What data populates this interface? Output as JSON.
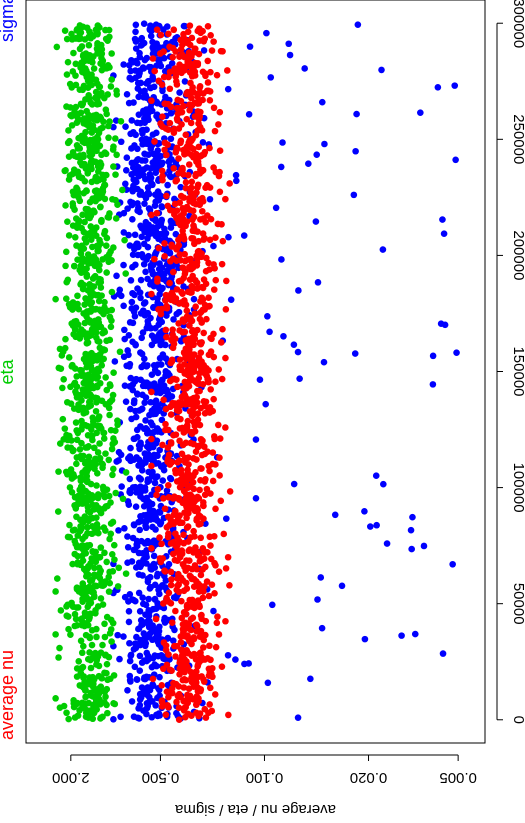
{
  "chart_data": {
    "type": "scatter",
    "orientation": "rotated-90",
    "xlabel": "",
    "ylabel": "average nu / eta / sigma",
    "x_ticks": [
      "0",
      "50000",
      "100000",
      "150000",
      "200000",
      "250000",
      "300000"
    ],
    "y_ticks": [
      "2.000",
      "0.500",
      "0.100",
      "0.020",
      "0.005"
    ],
    "xlim": [
      -10000,
      310000
    ],
    "ylim": [
      4.0,
      0.0033
    ],
    "y_scale": "log",
    "legend_labels": [
      "average nu",
      "eta",
      "sigma"
    ],
    "series": [
      {
        "name": "average nu",
        "color": "#ff0000",
        "y_range_typical": [
          0.2,
          0.5
        ],
        "x": [
          0,
          5000,
          10000,
          15000,
          20000,
          25000,
          30000,
          35000,
          40000,
          45000,
          50000,
          60000,
          70000,
          80000,
          90000,
          100000,
          110000,
          120000,
          130000,
          140000,
          150000,
          160000,
          170000,
          180000,
          190000,
          200000,
          210000,
          220000,
          230000,
          240000,
          250000,
          260000,
          270000,
          280000,
          290000,
          300000
        ],
        "y": [
          0.3,
          0.28,
          0.27,
          0.3,
          0.28,
          0.25,
          0.3,
          0.29,
          0.28,
          0.31,
          0.3,
          0.3,
          0.28,
          0.3,
          0.29,
          0.3,
          0.31,
          0.3,
          0.28,
          0.3,
          0.3,
          0.29,
          0.3,
          0.3,
          0.28,
          0.3,
          0.29,
          0.3,
          0.3,
          0.29,
          0.3,
          0.3,
          0.29,
          0.3,
          0.3,
          0.3
        ]
      },
      {
        "name": "eta",
        "color": "#00cc00",
        "y_range_typical": [
          1.0,
          2.2
        ],
        "x": [
          0,
          5000,
          10000,
          15000,
          20000,
          25000,
          30000,
          35000,
          40000,
          45000,
          50000,
          60000,
          70000,
          80000,
          90000,
          100000,
          110000,
          120000,
          130000,
          140000,
          150000,
          160000,
          170000,
          180000,
          190000,
          200000,
          210000,
          220000,
          230000,
          240000,
          250000,
          260000,
          270000,
          280000,
          290000,
          300000
        ],
        "y": [
          1.5,
          1.5,
          1.6,
          1.5,
          1.4,
          1.5,
          1.6,
          1.5,
          1.5,
          1.5,
          1.5,
          1.6,
          1.5,
          1.5,
          1.6,
          1.5,
          1.5,
          1.4,
          1.5,
          1.5,
          1.5,
          1.5,
          1.6,
          1.5,
          1.5,
          1.5,
          1.5,
          1.5,
          1.5,
          1.5,
          1.5,
          1.5,
          1.5,
          1.5,
          1.5,
          1.5
        ]
      },
      {
        "name": "sigma",
        "color": "#0000ff",
        "y_range_typical": [
          0.35,
          0.9
        ],
        "outliers_y_range": [
          0.005,
          0.35
        ],
        "x": [
          0,
          5000,
          10000,
          15000,
          20000,
          25000,
          30000,
          35000,
          40000,
          45000,
          50000,
          60000,
          70000,
          80000,
          90000,
          100000,
          110000,
          120000,
          130000,
          140000,
          150000,
          160000,
          170000,
          180000,
          190000,
          200000,
          210000,
          220000,
          230000,
          240000,
          250000,
          260000,
          270000,
          280000,
          290000,
          300000
        ],
        "y": [
          0.55,
          0.5,
          0.6,
          0.55,
          0.55,
          0.5,
          0.5,
          0.55,
          0.5,
          0.55,
          0.55,
          0.55,
          0.5,
          0.55,
          0.5,
          0.55,
          0.55,
          0.5,
          0.55,
          0.55,
          0.55,
          0.55,
          0.55,
          0.55,
          0.55,
          0.5,
          0.5,
          0.55,
          0.55,
          0.5,
          0.55,
          0.55,
          0.55,
          0.55,
          0.55,
          0.55
        ]
      }
    ]
  }
}
